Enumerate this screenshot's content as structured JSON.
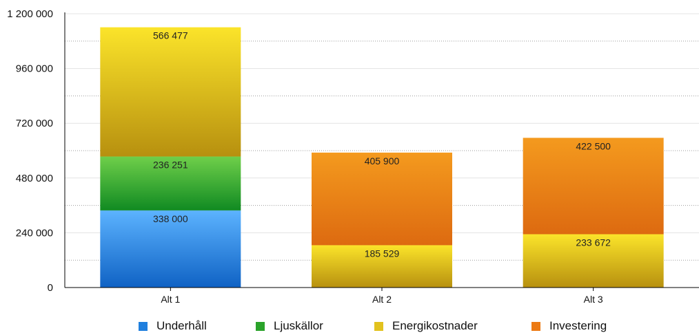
{
  "chart_data": {
    "type": "bar",
    "stacked": true,
    "title": "",
    "xlabel": "",
    "ylabel": "",
    "categories": [
      "Alt 1",
      "Alt 2",
      "Alt 3"
    ],
    "ylim": [
      0,
      1200000
    ],
    "yticks": [
      0,
      240000,
      480000,
      720000,
      960000,
      1200000
    ],
    "ytick_labels": [
      "0",
      "240 000",
      "480 000",
      "720 000",
      "960 000",
      "1 200 000"
    ],
    "grid": true,
    "legend_position": "bottom",
    "series": [
      {
        "name": "Underhåll",
        "color": "#1f7fde",
        "values": [
          338000,
          0,
          0
        ],
        "labels": [
          "338 000",
          "",
          ""
        ]
      },
      {
        "name": "Ljuskällor",
        "color": "#2aa32a",
        "values": [
          236251,
          0,
          0
        ],
        "labels": [
          "236 251",
          "",
          ""
        ]
      },
      {
        "name": "Energikostnader",
        "color": "#e2c21e",
        "values": [
          566477,
          185529,
          233672
        ],
        "labels": [
          "566 477",
          "185 529",
          "233 672"
        ]
      },
      {
        "name": "Investering",
        "color": "#ec7a14",
        "values": [
          0,
          405900,
          422500
        ],
        "labels": [
          "",
          "405 900",
          "422 500"
        ]
      }
    ]
  }
}
